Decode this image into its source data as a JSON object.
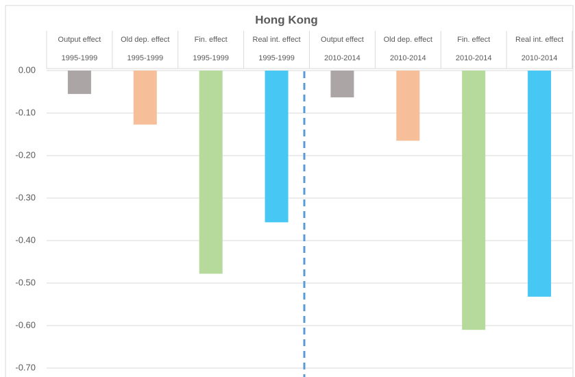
{
  "chart_data": {
    "type": "bar",
    "title": "Hong Kong",
    "categories": [
      "Output effect",
      "Old dep. effect",
      "Fin. effect",
      "Real int. effect",
      "Output effect",
      "Old dep. effect",
      "Fin. effect",
      "Real int. effect"
    ],
    "periods": [
      "1995-1999",
      "1995-1999",
      "1995-1999",
      "1995-1999",
      "2010-2014",
      "2010-2014",
      "2010-2014",
      "2010-2014"
    ],
    "values": [
      -0.055,
      -0.127,
      -0.478,
      -0.357,
      -0.063,
      -0.165,
      -0.61,
      -0.532
    ],
    "colors": [
      "#aba6a5",
      "#f7be9a",
      "#b6d99c",
      "#47c8f4",
      "#aba6a5",
      "#f7be9a",
      "#b6d99c",
      "#47c8f4"
    ],
    "ylim": [
      -0.7,
      0
    ],
    "yticks": [
      {
        "value": 0,
        "label": "0.00"
      },
      {
        "value": -0.1,
        "label": "-0.10"
      },
      {
        "value": -0.2,
        "label": "-0.20"
      },
      {
        "value": -0.3,
        "label": "-0.30"
      },
      {
        "value": -0.4,
        "label": "-0.40"
      },
      {
        "value": -0.5,
        "label": "-0.50"
      },
      {
        "value": -0.6,
        "label": "-0.60"
      },
      {
        "value": -0.7,
        "label": "-0.70"
      }
    ],
    "grid": true
  }
}
